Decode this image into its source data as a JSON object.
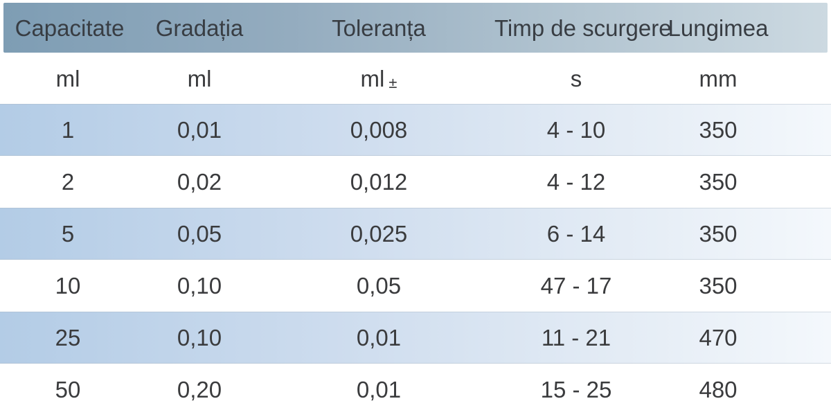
{
  "table": {
    "title_semantic": "pipette-specification-table",
    "columns": [
      {
        "label": "Capacitate",
        "unit": "ml",
        "unit_suffix": ""
      },
      {
        "label": "Gradația",
        "unit": "ml",
        "unit_suffix": ""
      },
      {
        "label": "Toleranța",
        "unit": "ml",
        "unit_suffix": "±"
      },
      {
        "label": "Timp de scurgere",
        "unit": "s",
        "unit_suffix": ""
      },
      {
        "label": "Lungimea",
        "unit": "mm",
        "unit_suffix": ""
      }
    ],
    "rows": [
      {
        "capacitate": "1",
        "gradatia": "0,01",
        "toleranta": "0,008",
        "timp": "4 - 10",
        "lungimea": "350"
      },
      {
        "capacitate": "2",
        "gradatia": "0,02",
        "toleranta": "0,012",
        "timp": "4 - 12",
        "lungimea": "350"
      },
      {
        "capacitate": "5",
        "gradatia": "0,05",
        "toleranta": "0,025",
        "timp": "6 - 14",
        "lungimea": "350"
      },
      {
        "capacitate": "10",
        "gradatia": "0,10",
        "toleranta": "0,05",
        "timp": "47 - 17",
        "lungimea": "350"
      },
      {
        "capacitate": "25",
        "gradatia": "0,10",
        "toleranta": "0,01",
        "timp": "11 - 21",
        "lungimea": "470"
      },
      {
        "capacitate": "50",
        "gradatia": "0,20",
        "toleranta": "0,01",
        "timp": "15 - 25",
        "lungimea": "480"
      }
    ]
  },
  "colors": {
    "header_gradient_left": "#7e9db4",
    "header_gradient_right": "#ccd9e1",
    "row_gradient_left": "#b3cce6",
    "row_gradient_right": "#f4f8fc",
    "row_alt": "#ffffff",
    "text": "#3a3b3d"
  }
}
